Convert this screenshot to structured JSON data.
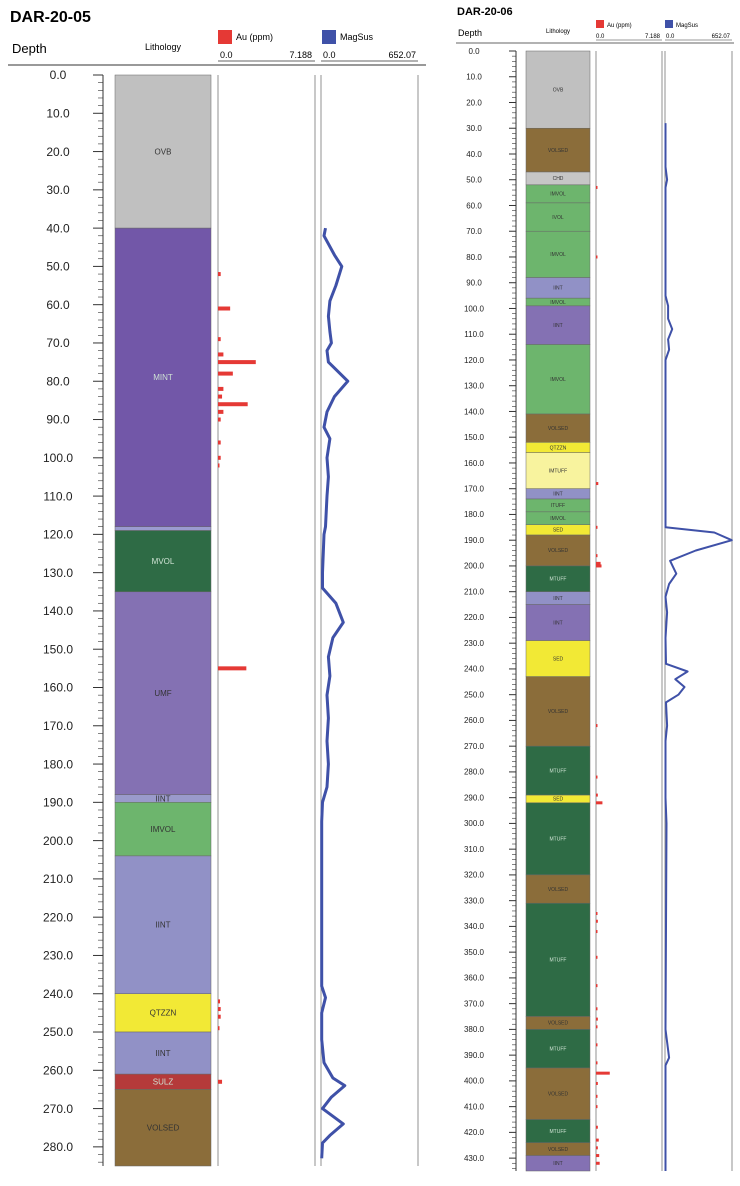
{
  "logs": [
    {
      "hole_id": "DAR-20-05",
      "depth_label": "Depth",
      "lithology_label": "Lithology",
      "au": {
        "label": "Au (ppm)",
        "min": "0.0",
        "max": "7.188",
        "color": "#e53935"
      },
      "magsus": {
        "label": "MagSus",
        "min": "0.0",
        "max": "652.07",
        "color": "#3f51a8"
      }
    },
    {
      "hole_id": "DAR-20-06",
      "depth_label": "Depth",
      "lithology_label": "Lithology",
      "au": {
        "label": "Au (ppm)",
        "min": "0.0",
        "max": "7.188",
        "color": "#e53935"
      },
      "magsus": {
        "label": "MagSus",
        "min": "0.0",
        "max": "652.07",
        "color": "#3f51a8"
      }
    }
  ],
  "chart_data": [
    {
      "type": "strip-log",
      "hole_id": "DAR-20-05",
      "depth_range": [
        0,
        285
      ],
      "depth_ticks": [
        0,
        10,
        20,
        30,
        40,
        50,
        60,
        70,
        80,
        90,
        100,
        110,
        120,
        130,
        140,
        150,
        160,
        170,
        180,
        190,
        200,
        210,
        220,
        230,
        240,
        250,
        260,
        270,
        280
      ],
      "au_range": [
        0,
        7.188
      ],
      "magsus_range": [
        0,
        652.07
      ],
      "lithology": [
        {
          "from": 0,
          "to": 40,
          "code": "OVB",
          "color": "#c0c0c0"
        },
        {
          "from": 40,
          "to": 118,
          "code": "MINT",
          "color": "#7257a8"
        },
        {
          "from": 118,
          "to": 119,
          "code": "",
          "color": "#9b9bd0"
        },
        {
          "from": 119,
          "to": 135,
          "code": "MVOL",
          "color": "#2e6b45"
        },
        {
          "from": 135,
          "to": 188,
          "code": "UMF",
          "color": "#8471b3"
        },
        {
          "from": 188,
          "to": 190,
          "code": "IINT",
          "color": "#9a9acb"
        },
        {
          "from": 190,
          "to": 204,
          "code": "IMVOL",
          "color": "#6db56d"
        },
        {
          "from": 204,
          "to": 240,
          "code": "IINT",
          "color": "#9191c6"
        },
        {
          "from": 240,
          "to": 250,
          "code": "QTZZN",
          "color": "#f2e935"
        },
        {
          "from": 250,
          "to": 261,
          "code": "IINT",
          "color": "#9191c6"
        },
        {
          "from": 261,
          "to": 265,
          "code": "SULZ",
          "color": "#b53a3a"
        },
        {
          "from": 265,
          "to": 285,
          "code": "VOLSED",
          "color": "#8b6d3a"
        }
      ],
      "au": [
        {
          "depth": 52,
          "value": 0.2
        },
        {
          "depth": 61,
          "value": 0.9
        },
        {
          "depth": 69,
          "value": 0.2
        },
        {
          "depth": 73,
          "value": 0.4
        },
        {
          "depth": 75,
          "value": 2.8
        },
        {
          "depth": 78,
          "value": 1.1
        },
        {
          "depth": 82,
          "value": 0.4
        },
        {
          "depth": 84,
          "value": 0.3
        },
        {
          "depth": 86,
          "value": 2.2
        },
        {
          "depth": 88,
          "value": 0.4
        },
        {
          "depth": 90,
          "value": 0.2
        },
        {
          "depth": 96,
          "value": 0.2
        },
        {
          "depth": 100,
          "value": 0.2
        },
        {
          "depth": 102,
          "value": 0.1
        },
        {
          "depth": 155,
          "value": 2.1
        },
        {
          "depth": 242,
          "value": 0.15
        },
        {
          "depth": 244,
          "value": 0.2
        },
        {
          "depth": 246,
          "value": 0.2
        },
        {
          "depth": 249,
          "value": 0.1
        },
        {
          "depth": 263,
          "value": 0.3
        }
      ],
      "magsus": [
        {
          "depth": 40,
          "value": 30
        },
        {
          "depth": 42,
          "value": 20
        },
        {
          "depth": 47,
          "value": 90
        },
        {
          "depth": 50,
          "value": 140
        },
        {
          "depth": 55,
          "value": 100
        },
        {
          "depth": 59,
          "value": 60
        },
        {
          "depth": 63,
          "value": 50
        },
        {
          "depth": 67,
          "value": 60
        },
        {
          "depth": 70,
          "value": 70
        },
        {
          "depth": 72,
          "value": 40
        },
        {
          "depth": 75,
          "value": 50
        },
        {
          "depth": 80,
          "value": 180
        },
        {
          "depth": 84,
          "value": 90
        },
        {
          "depth": 88,
          "value": 40
        },
        {
          "depth": 92,
          "value": 20
        },
        {
          "depth": 95,
          "value": 60
        },
        {
          "depth": 100,
          "value": 40
        },
        {
          "depth": 105,
          "value": 50
        },
        {
          "depth": 110,
          "value": 40
        },
        {
          "depth": 118,
          "value": 30
        },
        {
          "depth": 120,
          "value": 20
        },
        {
          "depth": 130,
          "value": 10
        },
        {
          "depth": 134,
          "value": 10
        },
        {
          "depth": 138,
          "value": 100
        },
        {
          "depth": 143,
          "value": 150
        },
        {
          "depth": 147,
          "value": 80
        },
        {
          "depth": 152,
          "value": 50
        },
        {
          "depth": 157,
          "value": 60
        },
        {
          "depth": 162,
          "value": 40
        },
        {
          "depth": 168,
          "value": 50
        },
        {
          "depth": 174,
          "value": 40
        },
        {
          "depth": 180,
          "value": 50
        },
        {
          "depth": 186,
          "value": 40
        },
        {
          "depth": 190,
          "value": 10
        },
        {
          "depth": 195,
          "value": 5
        },
        {
          "depth": 220,
          "value": 5
        },
        {
          "depth": 238,
          "value": 5
        },
        {
          "depth": 241,
          "value": 30
        },
        {
          "depth": 245,
          "value": 5
        },
        {
          "depth": 252,
          "value": 5
        },
        {
          "depth": 258,
          "value": 20
        },
        {
          "depth": 262,
          "value": 80
        },
        {
          "depth": 264,
          "value": 160
        },
        {
          "depth": 267,
          "value": 70
        },
        {
          "depth": 270,
          "value": 10
        },
        {
          "depth": 274,
          "value": 150
        },
        {
          "depth": 277,
          "value": 60
        },
        {
          "depth": 279,
          "value": 10
        },
        {
          "depth": 283,
          "value": 5
        }
      ]
    },
    {
      "type": "strip-log",
      "hole_id": "DAR-20-06",
      "depth_range": [
        0,
        435
      ],
      "depth_ticks": [
        0,
        10,
        20,
        30,
        40,
        50,
        60,
        70,
        80,
        90,
        100,
        110,
        120,
        130,
        140,
        150,
        160,
        170,
        180,
        190,
        200,
        210,
        220,
        230,
        240,
        250,
        260,
        270,
        280,
        290,
        300,
        310,
        320,
        330,
        340,
        350,
        360,
        370,
        380,
        390,
        400,
        410,
        420,
        430
      ],
      "au_range": [
        0,
        7.188
      ],
      "magsus_range": [
        0,
        652.07
      ],
      "lithology": [
        {
          "from": 0,
          "to": 30,
          "code": "OVB",
          "color": "#c0c0c0"
        },
        {
          "from": 30,
          "to": 47,
          "code": "VOLSED",
          "color": "#8b6d3a"
        },
        {
          "from": 47,
          "to": 52,
          "code": "CHD",
          "color": "#c6c6c6"
        },
        {
          "from": 52,
          "to": 59,
          "code": "IMVOL",
          "color": "#6db56d"
        },
        {
          "from": 59,
          "to": 70,
          "code": "IVOL",
          "color": "#6db56d"
        },
        {
          "from": 70,
          "to": 88,
          "code": "IMVOL",
          "color": "#6db56d"
        },
        {
          "from": 88,
          "to": 96,
          "code": "IINT",
          "color": "#9191c6"
        },
        {
          "from": 96,
          "to": 99,
          "code": "IMVOL",
          "color": "#6db56d"
        },
        {
          "from": 99,
          "to": 114,
          "code": "IINT",
          "color": "#8471b3"
        },
        {
          "from": 114,
          "to": 141,
          "code": "IMVOL",
          "color": "#6db56d"
        },
        {
          "from": 141,
          "to": 152,
          "code": "VOLSED",
          "color": "#8b6d3a"
        },
        {
          "from": 152,
          "to": 156,
          "code": "QTZZN",
          "color": "#f2e935"
        },
        {
          "from": 156,
          "to": 170,
          "code": "IMTUFF",
          "color": "#f8f39e"
        },
        {
          "from": 170,
          "to": 174,
          "code": "IINT",
          "color": "#9191c6"
        },
        {
          "from": 174,
          "to": 179,
          "code": "ITUFF",
          "color": "#6db56d"
        },
        {
          "from": 179,
          "to": 184,
          "code": "IMVOL",
          "color": "#6db56d"
        },
        {
          "from": 184,
          "to": 188,
          "code": "SED",
          "color": "#f2e935"
        },
        {
          "from": 188,
          "to": 200,
          "code": "VOLSED",
          "color": "#8b6d3a"
        },
        {
          "from": 200,
          "to": 210,
          "code": "MTUFF",
          "color": "#2e6b45"
        },
        {
          "from": 210,
          "to": 215,
          "code": "IINT",
          "color": "#9191c6"
        },
        {
          "from": 215,
          "to": 229,
          "code": "IINT",
          "color": "#8471b3"
        },
        {
          "from": 229,
          "to": 243,
          "code": "SED",
          "color": "#f2e935"
        },
        {
          "from": 243,
          "to": 270,
          "code": "VOLSED",
          "color": "#8b6d3a"
        },
        {
          "from": 270,
          "to": 289,
          "code": "MTUFF",
          "color": "#2e6b45"
        },
        {
          "from": 289,
          "to": 292,
          "code": "SED",
          "color": "#f2e935"
        },
        {
          "from": 292,
          "to": 320,
          "code": "MTUFF",
          "color": "#2e6b45"
        },
        {
          "from": 320,
          "to": 331,
          "code": "VOLSED",
          "color": "#8b6d3a"
        },
        {
          "from": 331,
          "to": 375,
          "code": "MTUFF",
          "color": "#2e6b45"
        },
        {
          "from": 375,
          "to": 380,
          "code": "VOLSED",
          "color": "#8b6d3a"
        },
        {
          "from": 380,
          "to": 395,
          "code": "MTUFF",
          "color": "#2e6b45"
        },
        {
          "from": 395,
          "to": 415,
          "code": "VOLSED",
          "color": "#8b6d3a"
        },
        {
          "from": 415,
          "to": 424,
          "code": "MTUFF",
          "color": "#2e6b45"
        },
        {
          "from": 424,
          "to": 429,
          "code": "VOLSED",
          "color": "#8b6d3a"
        },
        {
          "from": 429,
          "to": 435,
          "code": "IINT",
          "color": "#8471b3"
        }
      ],
      "au": [
        {
          "depth": 53,
          "value": 0.1
        },
        {
          "depth": 80,
          "value": 0.15
        },
        {
          "depth": 168,
          "value": 0.25
        },
        {
          "depth": 185,
          "value": 0.1
        },
        {
          "depth": 196,
          "value": 0.1
        },
        {
          "depth": 199,
          "value": 0.5
        },
        {
          "depth": 200,
          "value": 0.6
        },
        {
          "depth": 262,
          "value": 0.1
        },
        {
          "depth": 282,
          "value": 0.15
        },
        {
          "depth": 289,
          "value": 0.2
        },
        {
          "depth": 292,
          "value": 0.7
        },
        {
          "depth": 335,
          "value": 0.15
        },
        {
          "depth": 338,
          "value": 0.2
        },
        {
          "depth": 342,
          "value": 0.1
        },
        {
          "depth": 352,
          "value": 0.1
        },
        {
          "depth": 363,
          "value": 0.1
        },
        {
          "depth": 372,
          "value": 0.15
        },
        {
          "depth": 376,
          "value": 0.2
        },
        {
          "depth": 379,
          "value": 0.15
        },
        {
          "depth": 386,
          "value": 0.1
        },
        {
          "depth": 393,
          "value": 0.1
        },
        {
          "depth": 397,
          "value": 1.5
        },
        {
          "depth": 401,
          "value": 0.2
        },
        {
          "depth": 406,
          "value": 0.15
        },
        {
          "depth": 410,
          "value": 0.1
        },
        {
          "depth": 418,
          "value": 0.2
        },
        {
          "depth": 423,
          "value": 0.3
        },
        {
          "depth": 426,
          "value": 0.2
        },
        {
          "depth": 429,
          "value": 0.35
        },
        {
          "depth": 432,
          "value": 0.4
        }
      ],
      "magsus": [
        {
          "depth": 28,
          "value": 5
        },
        {
          "depth": 45,
          "value": 5
        },
        {
          "depth": 50,
          "value": 20
        },
        {
          "depth": 53,
          "value": 5
        },
        {
          "depth": 95,
          "value": 5
        },
        {
          "depth": 99,
          "value": 30
        },
        {
          "depth": 104,
          "value": 30
        },
        {
          "depth": 108,
          "value": 70
        },
        {
          "depth": 112,
          "value": 30
        },
        {
          "depth": 116,
          "value": 40
        },
        {
          "depth": 120,
          "value": 5
        },
        {
          "depth": 185,
          "value": 5
        },
        {
          "depth": 187,
          "value": 480
        },
        {
          "depth": 190,
          "value": 650
        },
        {
          "depth": 194,
          "value": 300
        },
        {
          "depth": 198,
          "value": 50
        },
        {
          "depth": 203,
          "value": 110
        },
        {
          "depth": 207,
          "value": 40
        },
        {
          "depth": 212,
          "value": 5
        },
        {
          "depth": 218,
          "value": 20
        },
        {
          "depth": 228,
          "value": 5
        },
        {
          "depth": 238,
          "value": 10
        },
        {
          "depth": 241,
          "value": 220
        },
        {
          "depth": 244,
          "value": 100
        },
        {
          "depth": 247,
          "value": 190
        },
        {
          "depth": 250,
          "value": 130
        },
        {
          "depth": 253,
          "value": 10
        },
        {
          "depth": 262,
          "value": 20
        },
        {
          "depth": 268,
          "value": 5
        },
        {
          "depth": 290,
          "value": 5
        },
        {
          "depth": 300,
          "value": 15
        },
        {
          "depth": 380,
          "value": 5
        },
        {
          "depth": 391,
          "value": 40
        },
        {
          "depth": 394,
          "value": 5
        },
        {
          "depth": 435,
          "value": 5
        }
      ]
    }
  ]
}
